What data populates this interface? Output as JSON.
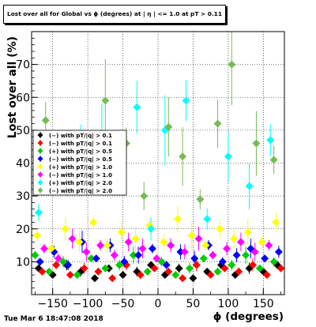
{
  "chart_data": {
    "type": "scatter",
    "title": "Lost over all for Global vs ϕ (degrees) at | η | <= 1.0 at pT > 0.11",
    "xlabel": "ϕ (degrees)",
    "ylabel": "Lost over all (%)",
    "xlim": [
      -180,
      180
    ],
    "ylim": [
      0,
      80
    ],
    "xticks": [
      -150,
      -100,
      -50,
      0,
      50,
      100,
      150
    ],
    "xtick_labels": [
      "−150",
      "−100",
      "−50",
      "0",
      "50",
      "100",
      "150"
    ],
    "yticks": [
      10,
      20,
      30,
      40,
      50,
      60,
      70
    ],
    "ytick_labels": [
      "10",
      "20",
      "30",
      "40",
      "50",
      "60",
      "70"
    ],
    "grid": true,
    "legend_position": "left-middle",
    "series": [
      {
        "name": "(−) with pT/|q| > 0.1",
        "color": "#000000",
        "marker": "diamond",
        "x": [
          -170,
          -150,
          -130,
          -110,
          -90,
          -70,
          -50,
          -30,
          -10,
          10,
          30,
          50,
          70,
          90,
          110,
          130,
          150,
          170
        ],
        "y": [
          8,
          6,
          9,
          7,
          5,
          8,
          6,
          7,
          9,
          6,
          8,
          5,
          7,
          9,
          6,
          8,
          7,
          9
        ]
      },
      {
        "name": "(−) with pT/|q| > 0.1",
        "color": "#ff0000",
        "marker": "diamond",
        "x": [
          -165,
          -145,
          -125,
          -105,
          -85,
          -65,
          -45,
          -25,
          -5,
          15,
          35,
          55,
          75,
          95,
          115,
          135,
          155,
          175
        ],
        "y": [
          7,
          9,
          6,
          8,
          7,
          5,
          9,
          6,
          8,
          7,
          5,
          9,
          6,
          8,
          7,
          9,
          6,
          8
        ]
      },
      {
        "name": "(+) with pT/|q| > 0.5",
        "color": "#00cc00",
        "marker": "diamond",
        "x": [
          -175,
          -155,
          -135,
          -115,
          -95,
          -75,
          -55,
          -35,
          -15,
          5,
          25,
          45,
          65,
          85,
          105,
          125,
          145,
          165
        ],
        "y": [
          12,
          7,
          10,
          6,
          11,
          8,
          9,
          12,
          7,
          10,
          6,
          8,
          11,
          7,
          9,
          12,
          8,
          10
        ]
      },
      {
        "name": "(−) with pT/|q| > 0.5",
        "color": "#0000ff",
        "marker": "diamond",
        "x": [
          -168,
          -148,
          -128,
          -108,
          -88,
          -68,
          -48,
          -28,
          -8,
          12,
          32,
          52,
          72,
          92,
          112,
          132,
          152,
          172
        ],
        "y": [
          10,
          13,
          9,
          16,
          11,
          15,
          10,
          12,
          14,
          9,
          13,
          11,
          15,
          10,
          12,
          14,
          11,
          13
        ]
      },
      {
        "name": "(+) with pT/|q| > 1.0",
        "color": "#ffff00",
        "marker": "diamond",
        "x": [
          -172,
          -152,
          -132,
          -112,
          -92,
          -72,
          -52,
          -32,
          -12,
          8,
          28,
          48,
          68,
          88,
          108,
          128,
          148,
          168
        ],
        "y": [
          18,
          14,
          20,
          16,
          22,
          15,
          19,
          17,
          21,
          16,
          23,
          18,
          15,
          20,
          17,
          19,
          16,
          22
        ]
      },
      {
        "name": "(−) with pT/|q| > 1.0",
        "color": "#ff00ff",
        "marker": "diamond",
        "x": [
          -162,
          -142,
          -122,
          -102,
          -82,
          -62,
          -42,
          -22,
          -2,
          18,
          38,
          58,
          78,
          98,
          118,
          138,
          158
        ],
        "y": [
          14,
          11,
          17,
          13,
          15,
          12,
          16,
          14,
          11,
          15,
          13,
          17,
          12,
          14,
          16,
          13,
          15
        ]
      },
      {
        "name": "(+) with pT/|q| > 2.0",
        "color": "#00ffff",
        "marker": "diamond",
        "x": [
          -170,
          -140,
          -110,
          -80,
          -50,
          -30,
          -10,
          10,
          40,
          70,
          100,
          130,
          160
        ],
        "y": [
          25,
          38,
          44,
          48,
          35,
          57,
          20,
          50,
          59,
          23,
          42,
          33,
          47
        ]
      },
      {
        "name": "(−) with pT/|q| > 2.0",
        "color": "#77bb55",
        "marker": "diamond",
        "x": [
          -160,
          -130,
          -100,
          -75,
          -45,
          -20,
          15,
          35,
          60,
          85,
          105,
          140,
          165
        ],
        "y": [
          53,
          35,
          42,
          59,
          46,
          30,
          51,
          42,
          29,
          52,
          70,
          46,
          41
        ]
      }
    ]
  },
  "timestamp": "Tue Mar  6 18:47:08 2018"
}
